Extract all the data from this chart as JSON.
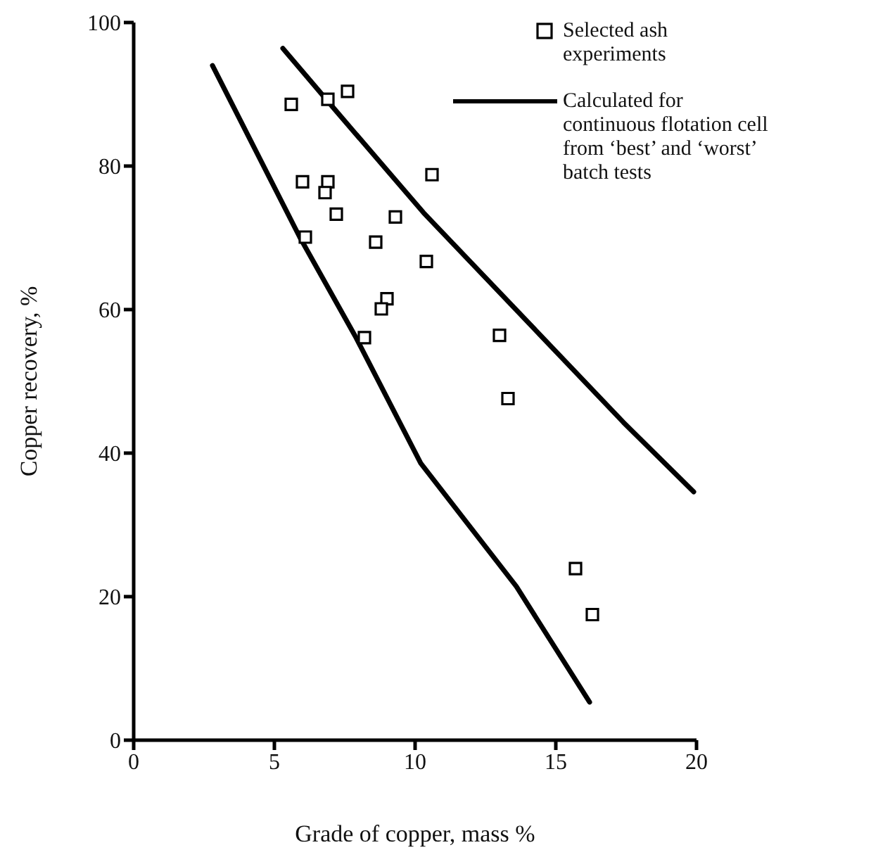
{
  "chart_data": {
    "type": "scatter",
    "xlabel": "Grade of copper, mass %",
    "ylabel": "Copper recovery, %",
    "xlim": [
      0,
      20
    ],
    "xticks": [
      0,
      5,
      10,
      15,
      20
    ],
    "ylim": [
      0,
      100
    ],
    "yticks": [
      0,
      20,
      40,
      60,
      80,
      100
    ],
    "grid": false,
    "legend": "top right",
    "series": [
      {
        "name": "Selected ash experiments",
        "color": "#000000",
        "marker": "square",
        "x": [
          5.6,
          6.9,
          7.6,
          10.6,
          6.0,
          6.9,
          6.8,
          7.2,
          9.3,
          6.1,
          8.6,
          10.4,
          9.0,
          8.8,
          8.2,
          13.0,
          13.3,
          15.7,
          16.3
        ],
        "values": [
          88.6,
          89.3,
          90.4,
          78.8,
          77.8,
          77.8,
          76.3,
          73.3,
          72.9,
          70.1,
          69.4,
          66.7,
          61.5,
          60.1,
          56.1,
          56.4,
          47.6,
          23.9,
          17.5
        ]
      },
      {
        "name": "Calculated for continuous flotation cell from ‘best’ and ‘worst’ batch tests",
        "type": "line",
        "color": "#000000",
        "marker": "none",
        "line_style": "solid",
        "x": [
          2.8,
          5.9,
          7.9,
          10.2,
          13.6,
          16.2
        ],
        "values": [
          94.0,
          70.1,
          56.1,
          38.6,
          21.4,
          5.3
        ]
      },
      {
        "type": "line",
        "color": "#000000",
        "marker": "none",
        "line_style": "solid",
        "x": [
          5.3,
          7.1,
          10.3,
          17.4,
          19.9
        ],
        "values": [
          96.4,
          88.1,
          73.5,
          44.3,
          34.6
        ]
      }
    ]
  }
}
